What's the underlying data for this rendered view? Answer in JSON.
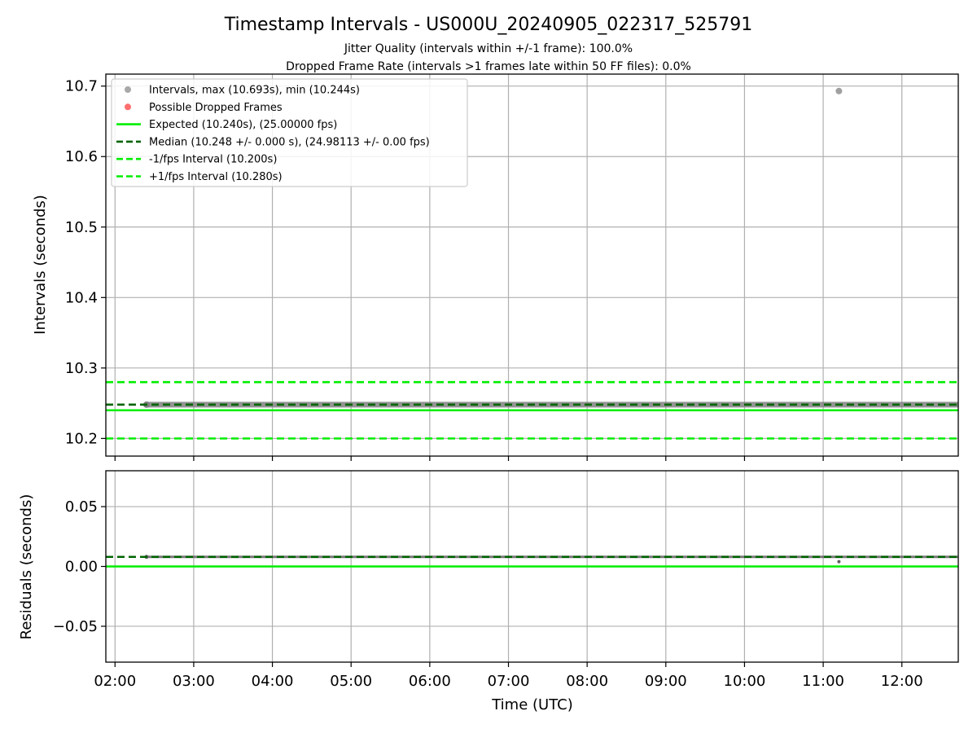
{
  "chart_data": [
    {
      "type": "scatter",
      "title": "Timestamp Intervals - US000U_20240905_022317_525791",
      "subtitle_lines": [
        "Jitter Quality (intervals within +/-1 frame): 100.0%",
        "Dropped Frame Rate (intervals >1 frames late within 50 FF files): 0.0%"
      ],
      "ylabel": "Intervals (seconds)",
      "xlim": [
        "01:53",
        "12:43"
      ],
      "ylim": [
        10.175,
        10.717
      ],
      "yticks": [
        "10.2",
        "10.3",
        "10.4",
        "10.5",
        "10.6",
        "10.7"
      ],
      "grid": true,
      "legend_position": "upper-left",
      "series": [
        {
          "name": "Intervals, max (10.693s), min (10.244s)",
          "kind": "points",
          "color": "#808080",
          "x_start": "02:24",
          "x_end": "12:43",
          "value": 10.248,
          "outliers": [
            {
              "x": "11:12",
              "y": 10.693
            }
          ]
        },
        {
          "name": "Possible Dropped Frames",
          "kind": "points",
          "color": "#ff5555",
          "points": []
        },
        {
          "name": "Expected (10.240s), (25.00000 fps)",
          "kind": "hline",
          "style": "solid",
          "color": "#00ee00",
          "y": 10.24
        },
        {
          "name": "Median (10.248 +/- 0.000 s), (24.98113 +/- 0.00 fps)",
          "kind": "hline",
          "style": "dashed",
          "color": "#006400",
          "y": 10.248
        },
        {
          "name": "-1/fps Interval (10.200s)",
          "kind": "hline",
          "style": "dashed",
          "color": "#00ee00",
          "y": 10.2
        },
        {
          "name": "+1/fps Interval (10.280s)",
          "kind": "hline",
          "style": "dashed",
          "color": "#00ee00",
          "y": 10.28
        }
      ]
    },
    {
      "type": "scatter",
      "xlabel": "Time (UTC)",
      "ylabel": "Residuals (seconds)",
      "xlim": [
        "01:53",
        "12:43"
      ],
      "ylim": [
        -0.08,
        0.08
      ],
      "yticks": [
        "0.05",
        "0.00",
        "−0.05"
      ],
      "xticks": [
        "02:00",
        "03:00",
        "04:00",
        "05:00",
        "06:00",
        "07:00",
        "08:00",
        "09:00",
        "10:00",
        "11:00",
        "12:00"
      ],
      "grid": true,
      "series": [
        {
          "kind": "points",
          "color": "#606060",
          "x_start": "02:24",
          "x_end": "12:43",
          "value": 0.008,
          "extra": [
            {
              "x": "11:12",
              "y": 0.004
            }
          ]
        },
        {
          "kind": "hline",
          "style": "solid",
          "color": "#00ee00",
          "y": 0.0
        },
        {
          "kind": "hline",
          "style": "dashed",
          "color": "#006400",
          "y": 0.008
        }
      ]
    }
  ]
}
